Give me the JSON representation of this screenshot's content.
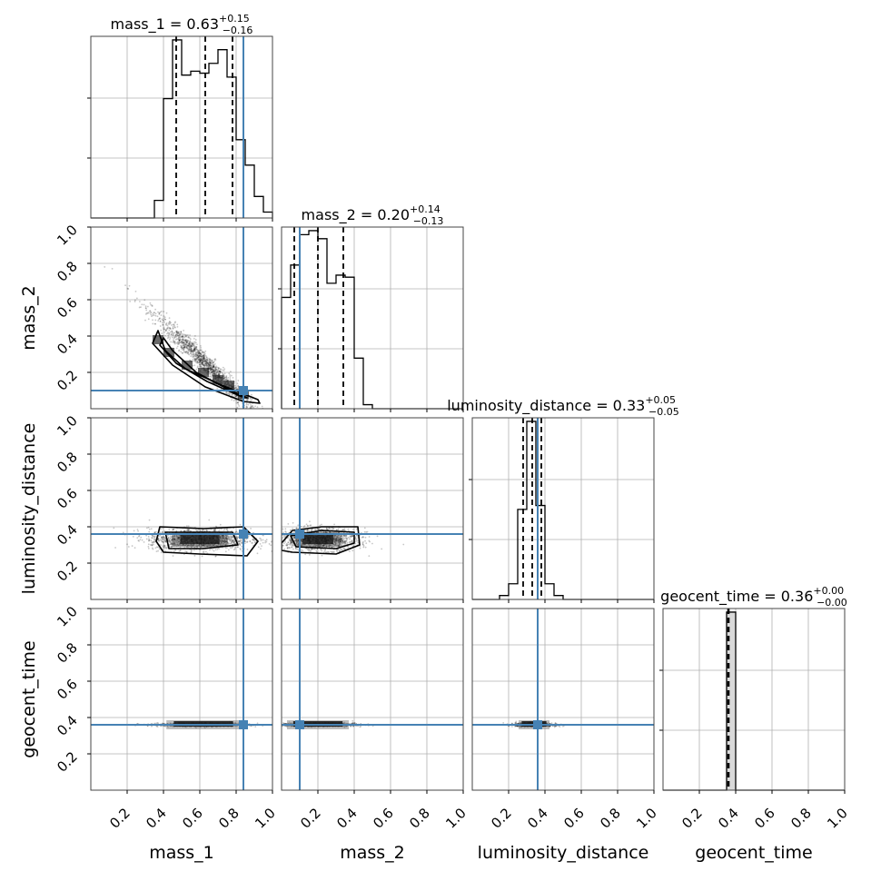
{
  "chart_data": {
    "type": "corner",
    "parameters": [
      "mass_1",
      "mass_2",
      "luminosity_distance",
      "geocent_time"
    ],
    "axis_range": [
      0,
      1
    ],
    "tick_labels": [
      "0.2",
      "0.4",
      "0.6",
      "0.8",
      "1.0"
    ],
    "grid": true,
    "truth_color": "#4682b4",
    "truths": {
      "mass_1": 0.84,
      "mass_2": 0.1,
      "luminosity_distance": 0.36,
      "geocent_time": 0.36
    },
    "summaries": [
      {
        "param": "mass_1",
        "name": "mass_1",
        "median": "0.63",
        "plus": "+0.15",
        "minus": "−0.16",
        "quantiles": [
          0.47,
          0.63,
          0.78
        ]
      },
      {
        "param": "mass_2",
        "name": "mass_2",
        "median": "0.20",
        "plus": "+0.14",
        "minus": "−0.13",
        "quantiles": [
          0.07,
          0.2,
          0.34
        ]
      },
      {
        "param": "luminosity_distance",
        "name": "luminosity_distance",
        "median": "0.33",
        "plus": "+0.05",
        "minus": "−0.05",
        "quantiles": [
          0.28,
          0.33,
          0.38
        ]
      },
      {
        "param": "geocent_time",
        "name": "geocent_time",
        "median": "0.36",
        "plus": "+0.00",
        "minus": "−0.00",
        "quantiles": [
          0.358,
          0.36,
          0.362
        ]
      }
    ],
    "histograms": {
      "mass_1": {
        "edges": [
          0.0,
          0.05,
          0.1,
          0.15,
          0.2,
          0.25,
          0.3,
          0.35,
          0.4,
          0.45,
          0.5,
          0.55,
          0.6,
          0.65,
          0.7,
          0.75,
          0.8,
          0.85,
          0.9,
          0.95,
          1.0
        ],
        "counts": [
          0,
          0,
          0,
          0,
          0,
          0,
          0,
          0.09,
          0.61,
          0.91,
          0.73,
          0.75,
          0.74,
          0.79,
          0.86,
          0.72,
          0.4,
          0.27,
          0.11,
          0.03
        ]
      },
      "mass_2": {
        "edges": [
          0.0,
          0.05,
          0.1,
          0.15,
          0.2,
          0.25,
          0.3,
          0.35,
          0.4,
          0.45,
          0.5,
          0.55,
          0.6,
          0.65,
          0.7,
          0.75,
          0.8,
          0.85,
          0.9,
          0.95,
          1.0
        ],
        "counts": [
          0.55,
          0.71,
          0.86,
          0.88,
          0.84,
          0.62,
          0.66,
          0.65,
          0.25,
          0.02,
          0,
          0,
          0,
          0,
          0,
          0,
          0,
          0,
          0,
          0
        ]
      },
      "luminosity_distance": {
        "edges": [
          0.0,
          0.05,
          0.1,
          0.15,
          0.2,
          0.25,
          0.3,
          0.35,
          0.4,
          0.45,
          0.5,
          0.55,
          0.6,
          0.65,
          0.7,
          0.75,
          0.8,
          0.85,
          0.9,
          0.95,
          1.0
        ],
        "counts": [
          0,
          0,
          0,
          0.02,
          0.08,
          0.46,
          0.91,
          0.48,
          0.08,
          0.02,
          0,
          0,
          0,
          0,
          0,
          0,
          0,
          0,
          0,
          0
        ]
      },
      "geocent_time": {
        "edges": [
          0.0,
          0.05,
          0.1,
          0.15,
          0.2,
          0.25,
          0.3,
          0.35,
          0.4,
          0.45,
          0.5,
          0.55,
          0.6,
          0.65,
          0.7,
          0.75,
          0.8,
          0.85,
          0.9,
          0.95,
          1.0
        ],
        "counts": [
          0,
          0,
          0,
          0,
          0,
          0,
          0,
          0.93,
          0,
          0,
          0,
          0,
          0,
          0,
          0,
          0,
          0,
          0,
          0,
          0
        ]
      }
    },
    "pairs": [
      {
        "x": "mass_1",
        "y": "mass_2",
        "center": [
          0.64,
          0.24
        ],
        "spread": [
          0.15,
          0.03
        ],
        "correlation": "negative",
        "contours": [
          [
            0.37,
            0.43,
            0.41,
            0.32,
            0.52,
            0.22,
            0.72,
            0.13,
            0.92,
            0.05,
            0.93,
            0.03,
            0.84,
            0.04,
            0.63,
            0.12,
            0.45,
            0.24,
            0.34,
            0.36
          ],
          [
            0.4,
            0.39,
            0.45,
            0.32,
            0.58,
            0.2,
            0.75,
            0.11,
            0.86,
            0.06,
            0.82,
            0.07,
            0.64,
            0.15,
            0.47,
            0.25,
            0.38,
            0.35
          ]
        ]
      },
      {
        "x": "mass_1",
        "y": "luminosity_distance",
        "center": [
          0.6,
          0.33
        ],
        "spread": [
          0.14,
          0.03
        ],
        "correlation": "none",
        "contours": [
          [
            0.38,
            0.4,
            0.62,
            0.39,
            0.84,
            0.4,
            0.92,
            0.32,
            0.86,
            0.24,
            0.6,
            0.25,
            0.4,
            0.26,
            0.36,
            0.32
          ],
          [
            0.41,
            0.37,
            0.6,
            0.37,
            0.78,
            0.37,
            0.81,
            0.3,
            0.62,
            0.28,
            0.43,
            0.28
          ]
        ]
      },
      {
        "x": "mass_2",
        "y": "luminosity_distance",
        "center": [
          0.2,
          0.33
        ],
        "spread": [
          0.11,
          0.03
        ],
        "correlation": "none",
        "contours": [
          [
            0.0,
            0.31,
            0.06,
            0.38,
            0.22,
            0.4,
            0.42,
            0.4,
            0.43,
            0.3,
            0.3,
            0.25,
            0.06,
            0.26,
            0.0,
            0.27
          ],
          [
            0.05,
            0.35,
            0.22,
            0.38,
            0.4,
            0.37,
            0.4,
            0.31,
            0.3,
            0.28,
            0.08,
            0.29
          ]
        ]
      },
      {
        "x": "mass_1",
        "y": "geocent_time",
        "center": [
          0.62,
          0.36
        ],
        "spread": [
          0.12,
          0.005
        ],
        "correlation": "none"
      },
      {
        "x": "mass_2",
        "y": "geocent_time",
        "center": [
          0.2,
          0.36
        ],
        "spread": [
          0.1,
          0.005
        ],
        "correlation": "none"
      },
      {
        "x": "luminosity_distance",
        "y": "geocent_time",
        "center": [
          0.34,
          0.36
        ],
        "spread": [
          0.05,
          0.005
        ],
        "correlation": "none"
      }
    ]
  }
}
